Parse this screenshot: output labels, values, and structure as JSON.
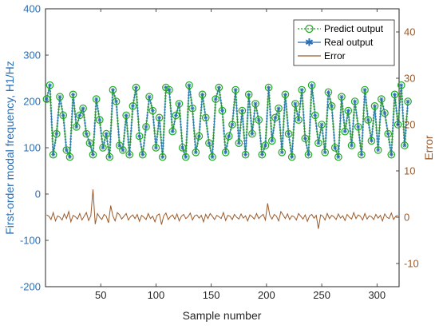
{
  "chart_data": {
    "type": "line",
    "xlabel": "Sample number",
    "ylabel_left": "First-order modal frequency, H1/Hz",
    "ylabel_right": "Error",
    "xlim": [
      0,
      320
    ],
    "ylim_left": [
      -200,
      400
    ],
    "ylim_right": [
      -15,
      45
    ],
    "x_ticks": [
      50,
      100,
      150,
      200,
      250,
      300
    ],
    "y_ticks_left": [
      -200,
      -100,
      0,
      100,
      200,
      300,
      400
    ],
    "y_ticks_right": [
      -10,
      0,
      10,
      20,
      30,
      40
    ],
    "grid": false,
    "legend_position": "top-right",
    "colors": {
      "predict": "#3cb43c",
      "predict_marker": "#22aa22",
      "real": "#2a6eb4",
      "error": "#9a5a2a",
      "axis_left": "#2a6eb4",
      "axis_right": "#9a5a2a"
    },
    "series": [
      {
        "name": "Predict output",
        "axis": "left",
        "style": "dotted-circle",
        "x_start": 1,
        "x_step": 3,
        "values": [
          205,
          235,
          85,
          130,
          210,
          170,
          95,
          80,
          215,
          145,
          170,
          185,
          130,
          110,
          85,
          205,
          160,
          100,
          130,
          80,
          225,
          200,
          105,
          95,
          170,
          85,
          190,
          230,
          125,
          85,
          145,
          210,
          180,
          100,
          165,
          80,
          230,
          225,
          135,
          170,
          195,
          100,
          80,
          235,
          185,
          90,
          125,
          215,
          165,
          110,
          80,
          205,
          230,
          180,
          90,
          125,
          150,
          225,
          110,
          180,
          85,
          215,
          130,
          195,
          160,
          85,
          105,
          230,
          115,
          165,
          185,
          90,
          215,
          130,
          80,
          195,
          160,
          225,
          120,
          85,
          235,
          170,
          110,
          150,
          90,
          220,
          190,
          100,
          80,
          210,
          135,
          180,
          105,
          200,
          145,
          85,
          225,
          160,
          115,
          190,
          95,
          205,
          175,
          130,
          85,
          215,
          150,
          235,
          105,
          200
        ]
      },
      {
        "name": "Real output",
        "axis": "left",
        "style": "solid-star"
      },
      {
        "name": "Error",
        "axis": "right",
        "style": "solid",
        "x": [
          1,
          3,
          5,
          7,
          9,
          11,
          13,
          15,
          17,
          19,
          21,
          23,
          25,
          27,
          29,
          31,
          33,
          35,
          37,
          39,
          41,
          43,
          45,
          47,
          49,
          51,
          53,
          55,
          57,
          59,
          61,
          63,
          65,
          67,
          69,
          71,
          73,
          75,
          77,
          79,
          81,
          83,
          85,
          87,
          89,
          91,
          93,
          95,
          97,
          99,
          101,
          103,
          105,
          107,
          109,
          111,
          113,
          115,
          117,
          119,
          121,
          123,
          125,
          127,
          129,
          131,
          133,
          135,
          137,
          139,
          141,
          143,
          145,
          147,
          149,
          151,
          153,
          155,
          157,
          159,
          161,
          163,
          165,
          167,
          169,
          171,
          173,
          175,
          177,
          179,
          181,
          183,
          185,
          187,
          189,
          191,
          193,
          195,
          197,
          199,
          201,
          203,
          205,
          207,
          209,
          211,
          213,
          215,
          217,
          219,
          221,
          223,
          225,
          227,
          229,
          231,
          233,
          235,
          237,
          239,
          241,
          243,
          245,
          247,
          249,
          251,
          253,
          255,
          257,
          259,
          261,
          263,
          265,
          267,
          269,
          271,
          273,
          275,
          277,
          279,
          281,
          283,
          285,
          287,
          289,
          291,
          293,
          295,
          297,
          299,
          301,
          303,
          305,
          307,
          309,
          311,
          313,
          315,
          317,
          319
        ],
        "values": [
          0.5,
          0.2,
          -0.5,
          1.0,
          -0.8,
          0.3,
          0.0,
          -0.6,
          0.7,
          -0.3,
          1.2,
          -1.0,
          0.4,
          0.1,
          -0.4,
          0.8,
          -0.6,
          0.2,
          1.0,
          -0.7,
          0.3,
          6.0,
          -1.5,
          0.8,
          0.0,
          -0.5,
          0.6,
          0.2,
          -1.2,
          2.5,
          0.3,
          -0.8,
          1.0,
          0.5,
          -0.4,
          0.2,
          0.8,
          -0.6,
          0.1,
          0.5,
          -0.3,
          0.6,
          -0.9,
          0.4,
          0.0,
          -0.5,
          0.8,
          -0.3,
          0.2,
          -1.0,
          0.4,
          0.7,
          -1.6,
          0.3,
          0.9,
          -0.5,
          0.1,
          0.5,
          -0.4,
          0.7,
          -0.8,
          0.2,
          0.6,
          -0.3,
          0.1,
          0.9,
          -0.6,
          0.3,
          0.5,
          -0.2,
          0.4,
          -1.0,
          0.6,
          -0.3,
          0.8,
          0.2,
          -0.5,
          0.4,
          0.1,
          -0.3,
          1.0,
          -0.7,
          0.4,
          0.2,
          -0.5,
          0.6,
          0.0,
          -0.4,
          0.7,
          -0.2,
          0.3,
          -0.8,
          0.5,
          0.1,
          -0.4,
          0.8,
          -0.3,
          0.2,
          0.6,
          -0.6,
          3.0,
          0.4,
          -0.4,
          0.6,
          0.2,
          -0.8,
          1.2,
          0.5,
          -0.3,
          0.7,
          -0.5,
          0.3,
          0.1,
          -0.6,
          0.8,
          0.2,
          -0.4,
          0.5,
          -0.9,
          0.3,
          0.6,
          -0.2,
          0.4,
          -2.5,
          0.5,
          0.2,
          -0.6,
          0.8,
          -0.3,
          0.4,
          0.1,
          -0.5,
          0.7,
          -0.2,
          0.3,
          -0.7,
          0.6,
          0.0,
          -0.4,
          1.0,
          -0.3,
          0.5,
          0.2,
          -0.6,
          0.8,
          -0.4,
          0.3,
          0.1,
          -0.5,
          0.6,
          -0.2,
          0.4,
          -0.8,
          0.7,
          0.0,
          -0.3,
          0.9,
          -0.5,
          0.2,
          0.4
        ]
      }
    ]
  }
}
